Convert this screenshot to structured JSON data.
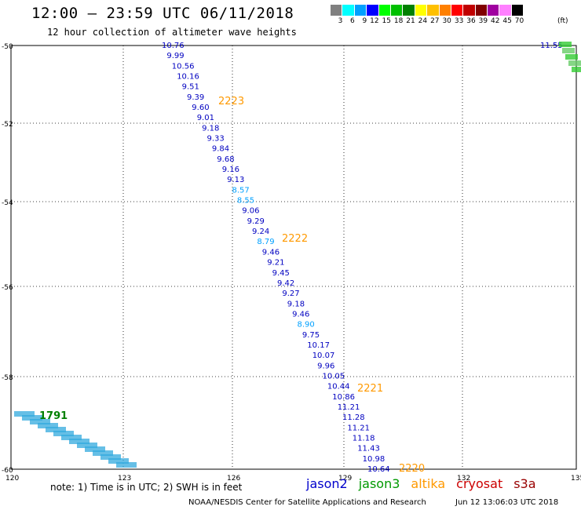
{
  "header": {
    "title": "12:00 – 23:59 UTC 06/11/2018",
    "subtitle": "12 hour collection of altimeter wave heights"
  },
  "legend": {
    "unit": "(ft)",
    "bins": [
      {
        "label": "3",
        "color": "#808080"
      },
      {
        "label": "6",
        "color": "#00ffff"
      },
      {
        "label": "9",
        "color": "#00a0ff"
      },
      {
        "label": "12",
        "color": "#0000ff"
      },
      {
        "label": "15",
        "color": "#00ff00"
      },
      {
        "label": "18",
        "color": "#00c000"
      },
      {
        "label": "21",
        "color": "#008000"
      },
      {
        "label": "24",
        "color": "#ffff00"
      },
      {
        "label": "27",
        "color": "#ffc000"
      },
      {
        "label": "30",
        "color": "#ff8000"
      },
      {
        "label": "33",
        "color": "#ff0000"
      },
      {
        "label": "36",
        "color": "#c00000"
      },
      {
        "label": "39",
        "color": "#800000"
      },
      {
        "label": "42",
        "color": "#a000a0"
      },
      {
        "label": "45",
        "color": "#ff80ff"
      },
      {
        "label": "70",
        "color": "#000000"
      }
    ]
  },
  "map": {
    "lon_ticks": [
      "120",
      "123",
      "126",
      "129",
      "132",
      "135"
    ],
    "lat_ticks": [
      "-50",
      "-52",
      "-54",
      "-56",
      "-58",
      "-60"
    ],
    "gridline_color": "#000000"
  },
  "tracks": [
    {
      "pass": "2223",
      "points": [
        {
          "v": "10.76",
          "c": "#0000c0"
        },
        {
          "v": "9.99",
          "c": "#0000c0"
        },
        {
          "v": "10.56",
          "c": "#0000c0"
        },
        {
          "v": "10.16",
          "c": "#0000c0"
        },
        {
          "v": "9.51",
          "c": "#0000c0"
        },
        {
          "v": "9.39",
          "c": "#0000c0"
        },
        {
          "v": "9.60",
          "c": "#0000c0"
        },
        {
          "v": "9.01",
          "c": "#0000c0"
        },
        {
          "v": "9.18",
          "c": "#0000c0"
        },
        {
          "v": "9.33",
          "c": "#0000c0"
        },
        {
          "v": "9.84",
          "c": "#0000c0"
        },
        {
          "v": "9.68",
          "c": "#0000c0"
        },
        {
          "v": "9.16",
          "c": "#0000c0"
        },
        {
          "v": "9.13",
          "c": "#0000c0"
        },
        {
          "v": "8.57",
          "c": "#00a0ff"
        },
        {
          "v": "8.55",
          "c": "#00a0ff"
        },
        {
          "v": "9.06",
          "c": "#0000c0"
        },
        {
          "v": "9.29",
          "c": "#0000c0"
        },
        {
          "v": "9.24",
          "c": "#0000c0"
        },
        {
          "v": "8.79",
          "c": "#00a0ff"
        },
        {
          "v": "9.46",
          "c": "#0000c0"
        },
        {
          "v": "9.21",
          "c": "#0000c0"
        },
        {
          "v": "9.45",
          "c": "#0000c0"
        },
        {
          "v": "9.42",
          "c": "#0000c0"
        },
        {
          "v": "9.27",
          "c": "#0000c0"
        },
        {
          "v": "9.18",
          "c": "#0000c0"
        },
        {
          "v": "9.46",
          "c": "#0000c0"
        },
        {
          "v": "8.90",
          "c": "#00a0ff"
        },
        {
          "v": "9.75",
          "c": "#0000c0"
        },
        {
          "v": "10.17",
          "c": "#0000c0"
        },
        {
          "v": "10.07",
          "c": "#0000c0"
        },
        {
          "v": "9.96",
          "c": "#0000c0"
        },
        {
          "v": "10.05",
          "c": "#0000c0"
        },
        {
          "v": "10.44",
          "c": "#0000c0"
        },
        {
          "v": "10.86",
          "c": "#0000c0"
        },
        {
          "v": "11.21",
          "c": "#0000c0"
        },
        {
          "v": "11.28",
          "c": "#0000c0"
        },
        {
          "v": "11.21",
          "c": "#0000c0"
        },
        {
          "v": "11.18",
          "c": "#0000c0"
        },
        {
          "v": "11.43",
          "c": "#0000c0"
        },
        {
          "v": "10.98",
          "c": "#0000c0"
        },
        {
          "v": "10.64",
          "c": "#0000c0"
        }
      ]
    }
  ],
  "pass_labels": [
    {
      "text": "2223",
      "color": "#ff9900"
    },
    {
      "text": "2222",
      "color": "#ff9900"
    },
    {
      "text": "2221",
      "color": "#ff9900"
    },
    {
      "text": "2220",
      "color": "#ff9900"
    }
  ],
  "corner_top_right": {
    "text": "11.55",
    "color": "#0000c0"
  },
  "corner_cluster_label": {
    "text": "1791",
    "color": "#008000"
  },
  "footer": {
    "note": "note:  1) Time is in UTC;  2) SWH is in feet",
    "satellites": [
      {
        "name": "jason2",
        "color": "#0000cc"
      },
      {
        "name": "jason3",
        "color": "#009900"
      },
      {
        "name": "altika",
        "color": "#ff9900"
      },
      {
        "name": "cryosat",
        "color": "#cc0000"
      },
      {
        "name": "s3a",
        "color": "#990000"
      }
    ],
    "credit": "NOAA/NESDIS Center for Satellite Applications and Research",
    "timestamp": "Jun 12 13:06:03 UTC 2018"
  }
}
